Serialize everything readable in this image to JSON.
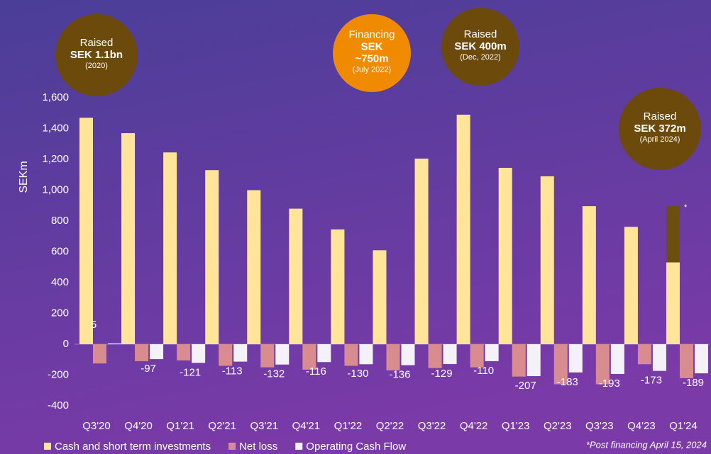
{
  "chart_data": {
    "type": "bar",
    "ylabel": "SEKm",
    "categories": [
      "Q3'20",
      "Q4'20",
      "Q1'21",
      "Q2'21",
      "Q3'21",
      "Q4'21",
      "Q1'22",
      "Q2'22",
      "Q3'22",
      "Q4'22",
      "Q1'23",
      "Q2'23",
      "Q3'23",
      "Q4'23",
      "Q1'24"
    ],
    "series": [
      {
        "name": "Cash and short term investments",
        "color": "#ffe49a",
        "values": [
          1470,
          1370,
          1245,
          1130,
          1000,
          880,
          745,
          610,
          1205,
          1490,
          1145,
          1090,
          896,
          762,
          531
        ]
      },
      {
        "color": "#6b4f10",
        "stacked_on": 0,
        "values": [
          null,
          null,
          null,
          null,
          null,
          null,
          null,
          null,
          null,
          null,
          null,
          null,
          null,
          null,
          365
        ]
      },
      {
        "name": "Net loss",
        "color": "#d98c90",
        "values": [
          -125,
          -110,
          -105,
          -140,
          -150,
          -165,
          -140,
          -170,
          -155,
          -150,
          -210,
          -260,
          -260,
          -130,
          -220
        ]
      },
      {
        "name": "Operating Cash Flow",
        "color": "#f4f2f8",
        "values": [
          5,
          -97,
          -121,
          -113,
          -132,
          -116,
          -130,
          -136,
          -129,
          -110,
          -207,
          -183,
          -193,
          -173,
          -189
        ]
      }
    ],
    "ylim": [
      -400,
      1600
    ],
    "yticks": [
      {
        "value": 1600,
        "label": "1,600"
      },
      {
        "value": 1400,
        "label": "1,400"
      },
      {
        "value": 1200,
        "label": "1,200"
      },
      {
        "value": 1000,
        "label": "1,000"
      },
      800,
      600,
      400,
      200,
      0,
      -200,
      -400
    ],
    "asterisk": "*",
    "footnote": "*Post financing April 15, 2024",
    "bubbles": [
      {
        "label": "Raised",
        "amount": [
          "SEK 1.1bn"
        ],
        "date": "(2020)",
        "color": "#6b4a0c"
      },
      {
        "label": "Financing",
        "amount": [
          "SEK",
          "~750m"
        ],
        "date": "(July 2022)",
        "color": "#f08a00"
      },
      {
        "label": "Raised",
        "amount": [
          "SEK 400m"
        ],
        "date": "(Dec, 2022)",
        "color": "#6b4a0c"
      },
      {
        "label": "Raised",
        "amount": [
          "SEK 372m"
        ],
        "date": "(April 2024)",
        "color": "#6b4a0c"
      }
    ]
  }
}
